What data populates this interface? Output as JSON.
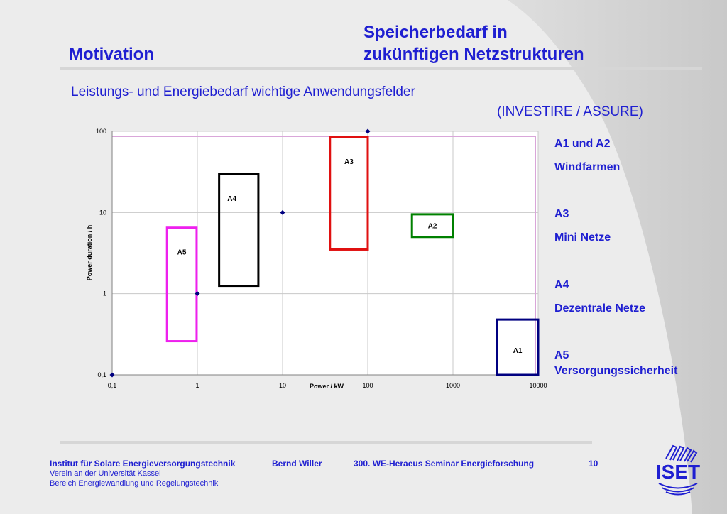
{
  "slide": {
    "title_left": "Motivation",
    "title_right_line1": "Speicherbedarf in",
    "title_right_line2": "zukünftigen Netzstrukturen",
    "subtitle_line1": "Leistungs- und Energiebedarf wichtige Anwendungsfelder",
    "subtitle_line2": "(INVESTIRE / ASSURE)"
  },
  "chart_data": {
    "type": "scatter",
    "title": "",
    "xlabel": "Power / kW",
    "ylabel": "Power duration / h",
    "x_scale": "log",
    "y_scale": "log",
    "xlim": [
      0.1,
      10000
    ],
    "ylim": [
      0.1,
      100
    ],
    "x_ticks": [
      {
        "value": 0.1,
        "label": "0,1"
      },
      {
        "value": 1,
        "label": "1"
      },
      {
        "value": 10,
        "label": "10"
      },
      {
        "value": 100,
        "label": "100"
      },
      {
        "value": 1000,
        "label": "1000"
      },
      {
        "value": 10000,
        "label": "10000"
      }
    ],
    "y_ticks": [
      {
        "value": 0.1,
        "label": "0,1"
      },
      {
        "value": 1,
        "label": "1"
      },
      {
        "value": 10,
        "label": "10"
      },
      {
        "value": 100,
        "label": "100"
      }
    ],
    "grid": true,
    "points": [
      {
        "x": 0.1,
        "y": 0.1
      },
      {
        "x": 1,
        "y": 1
      },
      {
        "x": 10,
        "y": 10
      },
      {
        "x": 100,
        "y": 100
      }
    ],
    "point_color": "#000080",
    "regions": [
      {
        "label": "A1",
        "x": [
          3300,
          10000
        ],
        "y": [
          0.1,
          0.48
        ],
        "color": "#000080"
      },
      {
        "label": "A2",
        "x": [
          330,
          1000
        ],
        "y": [
          5,
          9.5
        ],
        "color": "#008000"
      },
      {
        "label": "A3",
        "x": [
          36,
          100
        ],
        "y": [
          3.5,
          85
        ],
        "color": "#e01010"
      },
      {
        "label": "A4",
        "x": [
          1.8,
          5.2
        ],
        "y": [
          1.25,
          30
        ],
        "color": "#000000"
      },
      {
        "label": "A5",
        "x": [
          0.44,
          0.98
        ],
        "y": [
          0.26,
          6.5
        ],
        "color": "#ee20ee"
      }
    ]
  },
  "legend": [
    {
      "code": "A1 und A2",
      "name": "Windfarmen"
    },
    {
      "code": "A3",
      "name": "Mini Netze"
    },
    {
      "code": "A4",
      "name": "Dezentrale Netze"
    },
    {
      "code": "A5",
      "name": "Versorgungssicherheit"
    }
  ],
  "footer": {
    "institute": "Institut für Solare Energieversorgungstechnik",
    "author": "Bernd Willer",
    "event": "300. WE-Heraeus Seminar  Energieforschung",
    "page": "10",
    "line2": "Verein an der Universität Kassel",
    "line3": "Bereich Energiewandlung und Regelungstechnik",
    "logo_text": "ISET"
  },
  "colors": {
    "accent": "#1f1fd1",
    "background": "#ececec"
  }
}
